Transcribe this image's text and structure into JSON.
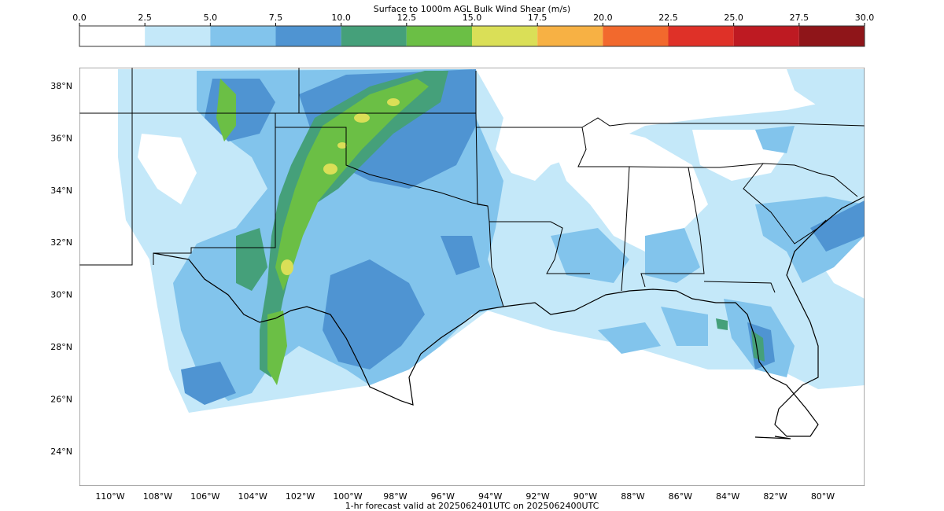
{
  "colorbar": {
    "title": "Surface to 1000m AGL Bulk Wind Shear (m/s)",
    "ticks": [
      "0.0",
      "2.5",
      "5.0",
      "7.5",
      "10.0",
      "12.5",
      "15.0",
      "17.5",
      "20.0",
      "22.5",
      "25.0",
      "27.5",
      "30.0"
    ],
    "colors": [
      "#ffffff",
      "#c4e8f9",
      "#82c4ec",
      "#4f94d2",
      "#45a07a",
      "#6bbf45",
      "#dadf57",
      "#f7b144",
      "#f2692d",
      "#df3128",
      "#be1a22",
      "#8f1519"
    ]
  },
  "map": {
    "lat_labels": [
      "38°N",
      "36°N",
      "34°N",
      "32°N",
      "30°N",
      "28°N",
      "26°N",
      "24°N"
    ],
    "lon_labels": [
      "110°W",
      "108°W",
      "106°W",
      "104°W",
      "102°W",
      "100°W",
      "98°W",
      "96°W",
      "94°W",
      "92°W",
      "90°W",
      "88°W",
      "86°W",
      "84°W",
      "82°W",
      "80°W"
    ],
    "lat_values": [
      38,
      36,
      34,
      32,
      30,
      28,
      26,
      24
    ],
    "lon_values": [
      110,
      108,
      106,
      104,
      102,
      100,
      98,
      96,
      94,
      92,
      90,
      88,
      86,
      84,
      82,
      80
    ]
  },
  "footer": {
    "forecast_text": "1-hr forecast valid at 2025062401UTC on 2025062400UTC",
    "forecast_color": "#e0201e"
  }
}
